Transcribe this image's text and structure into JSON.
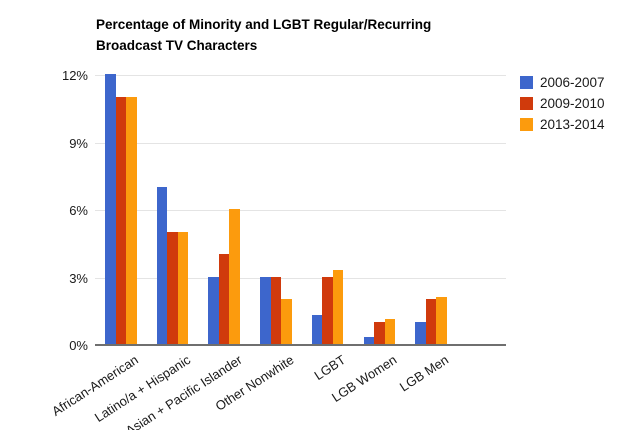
{
  "title": {
    "line1": "Percentage of Minority and LGBT Regular/Recurring",
    "line2": "Broadcast TV Characters"
  },
  "chart_data": {
    "type": "bar",
    "title": "Percentage of Minority and LGBT Regular/Recurring Broadcast TV Characters",
    "categories": [
      "African-American",
      "Latino/a + Hispanic",
      "Asian + Pacific Islander",
      "Other Nonwhite",
      "LGBT",
      "LGB Women",
      "LGB Men"
    ],
    "series": [
      {
        "name": "2006-2007",
        "color": "#3d66cc",
        "values": [
          12,
          7,
          3,
          3,
          1.3,
          0.3,
          1
        ]
      },
      {
        "name": "2009-2010",
        "color": "#d03a0c",
        "values": [
          11,
          5,
          4,
          3,
          3,
          1,
          2
        ]
      },
      {
        "name": "2013-2014",
        "color": "#fc9b0d",
        "values": [
          11,
          5,
          6,
          2,
          3.3,
          1.1,
          2.1
        ]
      }
    ],
    "xlabel": "",
    "ylabel": "",
    "y_axis": {
      "tick_labels": [
        "0%",
        "3%",
        "6%",
        "9%",
        "12%"
      ],
      "tick_values": [
        0,
        3,
        6,
        9,
        12
      ],
      "ylim": [
        0,
        12
      ],
      "grid": true
    },
    "legend_position": "right",
    "colors": {
      "grid": "#e4e4e4",
      "axis_line": "#6f6f6f",
      "text": "#1a1a1a",
      "background": "#ffffff"
    }
  }
}
